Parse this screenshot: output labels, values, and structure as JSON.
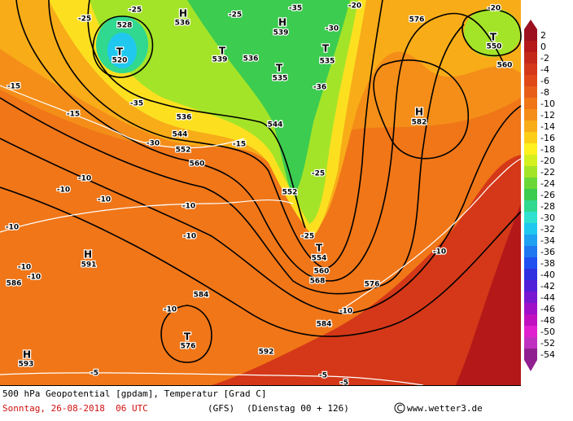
{
  "map": {
    "labels": [
      "H",
      "536",
      "T",
      "520",
      "528",
      "H",
      "539",
      "T",
      "539",
      "T",
      "535",
      "T",
      "535",
      "T",
      "550",
      "H",
      "582",
      "H",
      "591",
      "T",
      "576",
      "H",
      "593",
      "T",
      "554",
      "-25",
      "-25",
      "-25",
      "-35",
      "-30",
      "-20",
      "-20",
      "-35",
      "-30",
      "-15",
      "552",
      "560",
      "536",
      "544",
      "536",
      "544",
      "552",
      "-25",
      "-25",
      "560",
      "568",
      "576",
      "584",
      "584",
      "592",
      "-10",
      "-10",
      "-10",
      "-10",
      "-10",
      "-10",
      "-10",
      "-10",
      "586",
      "-10",
      "-10",
      "-10",
      "-15",
      "-15",
      "-5",
      "-5",
      "-5",
      "576",
      "560",
      "-36"
    ]
  },
  "legend": {
    "entries": [
      {
        "value": 2,
        "color": "#9c1020"
      },
      {
        "value": 0,
        "color": "#b41818"
      },
      {
        "value": -2,
        "color": "#c42818"
      },
      {
        "value": -4,
        "color": "#d43818"
      },
      {
        "value": -6,
        "color": "#e04818"
      },
      {
        "value": -8,
        "color": "#e85e18"
      },
      {
        "value": -10,
        "color": "#f07618"
      },
      {
        "value": -12,
        "color": "#f48e18"
      },
      {
        "value": -14,
        "color": "#f8ac18"
      },
      {
        "value": -16,
        "color": "#fcce18"
      },
      {
        "value": -18,
        "color": "#fff020"
      },
      {
        "value": -20,
        "color": "#d4f020"
      },
      {
        "value": -22,
        "color": "#a4e428"
      },
      {
        "value": -24,
        "color": "#6cd838"
      },
      {
        "value": -26,
        "color": "#3ccc50"
      },
      {
        "value": -28,
        "color": "#30d890"
      },
      {
        "value": -30,
        "color": "#30e0d0"
      },
      {
        "value": -32,
        "color": "#20c8f0"
      },
      {
        "value": -34,
        "color": "#20a0f0"
      },
      {
        "value": -36,
        "color": "#2078f0"
      },
      {
        "value": -38,
        "color": "#2050f0"
      },
      {
        "value": -40,
        "color": "#3030e0"
      },
      {
        "value": -42,
        "color": "#5020d8"
      },
      {
        "value": -44,
        "color": "#7818d0"
      },
      {
        "value": -46,
        "color": "#a010c8"
      },
      {
        "value": -48,
        "color": "#c010c0"
      },
      {
        "value": -50,
        "color": "#e020d0"
      },
      {
        "value": -52,
        "color": "#c030c0"
      },
      {
        "value": -54,
        "color": "#902090"
      }
    ]
  },
  "footer": {
    "title": "500 hPa Geopotential [gpdam], Temperatur [Grad C]",
    "date": "Sonntag, 26-08-2018  06 UTC",
    "model": "(GFS)",
    "run": "(Dienstag 00 + 126)",
    "site": "www.wetter3.de"
  }
}
